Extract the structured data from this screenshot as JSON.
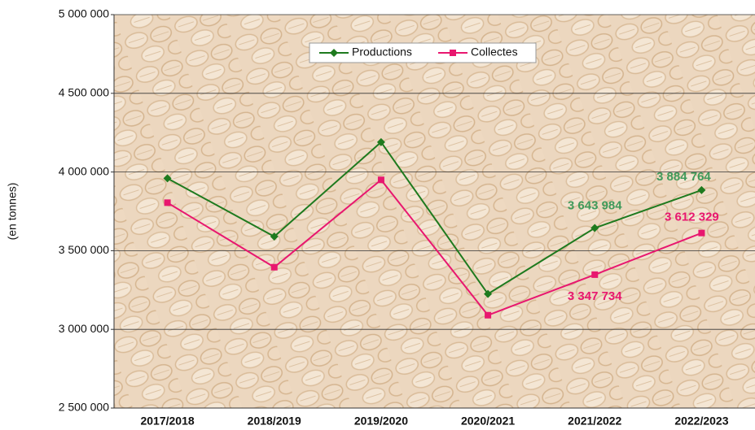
{
  "chart_data": {
    "type": "line",
    "y_label": "(en tonnes)",
    "categories": [
      "2017/2018",
      "2018/2019",
      "2019/2020",
      "2020/2021",
      "2021/2022",
      "2022/2023"
    ],
    "series": [
      {
        "name": "Productions",
        "color": "#1e7a1e",
        "label_color": "#3f9a5a",
        "marker": "diamond",
        "values": [
          3960000,
          3590000,
          4190000,
          3225000,
          3643984,
          3884764
        ],
        "value_labels": [
          null,
          null,
          null,
          null,
          "3 643 984",
          "3 884 764"
        ]
      },
      {
        "name": "Collectes",
        "color": "#e8176f",
        "label_color": "#e8176f",
        "marker": "square",
        "values": [
          3805000,
          3395000,
          3950000,
          3090000,
          3347734,
          3612329
        ],
        "value_labels": [
          null,
          null,
          null,
          null,
          "3 347 734",
          "3 612 329"
        ]
      }
    ],
    "ylim": [
      2500000,
      5000000
    ],
    "yticks": [
      {
        "value": 2500000,
        "label": "2 500 000"
      },
      {
        "value": 3000000,
        "label": "3 000 000"
      },
      {
        "value": 3500000,
        "label": "3 500 000"
      },
      {
        "value": 4000000,
        "label": "4 000 000"
      },
      {
        "value": 4500000,
        "label": "4 500 000"
      },
      {
        "value": 5000000,
        "label": "5 000 000"
      }
    ],
    "grid": true,
    "legend": "top"
  }
}
